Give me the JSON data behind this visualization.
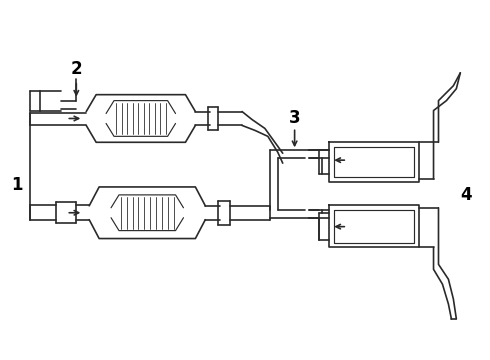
{
  "background_color": "#ffffff",
  "line_color": "#2a2a2a",
  "label_color": "#000000",
  "lw": 1.2,
  "label_fontsize": 12,
  "label_fontweight": "bold",
  "figsize": [
    4.9,
    3.6
  ],
  "dpi": 100
}
